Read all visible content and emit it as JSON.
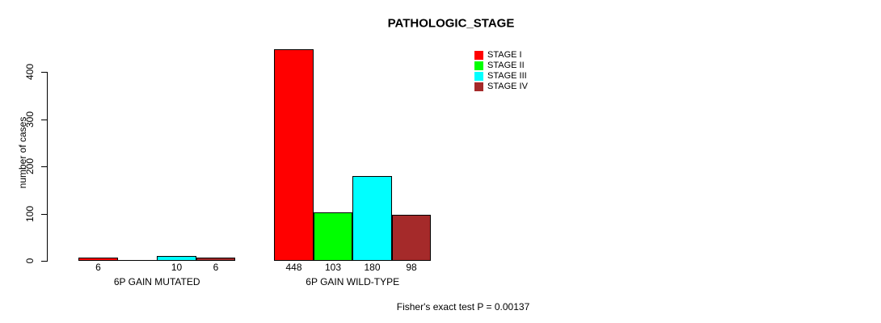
{
  "chart_data": {
    "type": "bar",
    "title": "PATHOLOGIC_STAGE",
    "xlabel": "",
    "ylabel": "number of cases",
    "ylim": [
      0,
      400
    ],
    "yticks": [
      0,
      100,
      200,
      300,
      400
    ],
    "grid": false,
    "legend_position": "top-right",
    "categories": [
      "6P GAIN MUTATED",
      "6P GAIN WILD-TYPE"
    ],
    "series": [
      {
        "name": "STAGE I",
        "color": "#ff0000",
        "values": [
          6,
          448
        ]
      },
      {
        "name": "STAGE II",
        "color": "#00ff00",
        "values": [
          0,
          103
        ]
      },
      {
        "name": "STAGE III",
        "color": "#00ffff",
        "values": [
          10,
          180
        ]
      },
      {
        "name": "STAGE IV",
        "color": "#a52a2a",
        "values": [
          6,
          98
        ]
      }
    ],
    "bar_value_labels": [
      [
        "6",
        "",
        "10",
        "6"
      ],
      [
        "448",
        "103",
        "180",
        "98"
      ]
    ],
    "annotation": "Fisher's exact test P = 0.00137",
    "axis_color": "#000000",
    "text_color": "#000000",
    "background_color": "#ffffff"
  }
}
